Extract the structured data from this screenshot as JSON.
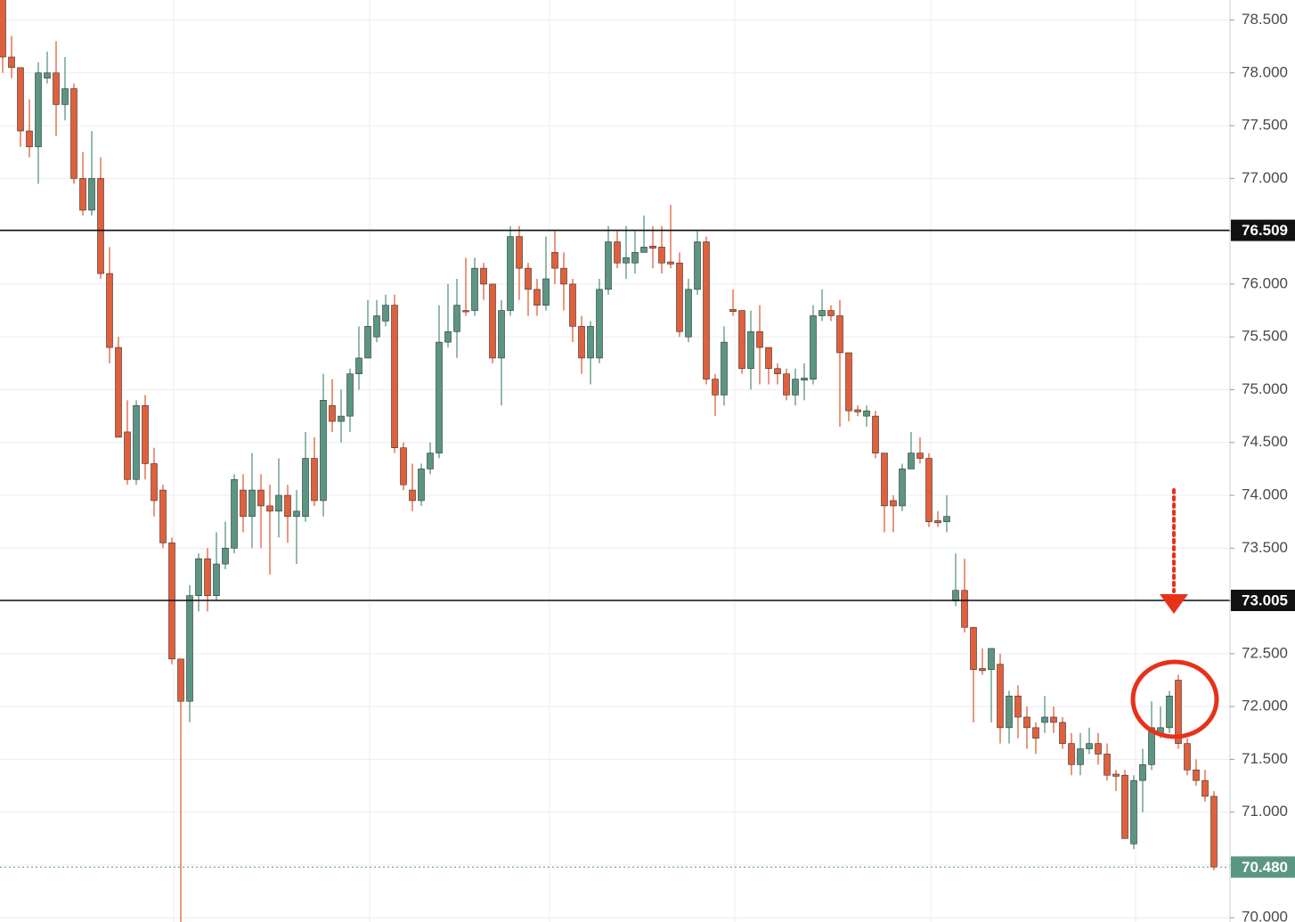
{
  "chart_data": {
    "type": "candlestick",
    "ohlc": [
      [
        78.7,
        78.7,
        78.0,
        78.15
      ],
      [
        78.15,
        78.35,
        77.95,
        78.05
      ],
      [
        78.05,
        78.05,
        77.3,
        77.45
      ],
      [
        77.45,
        77.75,
        77.2,
        77.3
      ],
      [
        77.3,
        78.1,
        76.95,
        78.0
      ],
      [
        77.95,
        78.2,
        77.9,
        78.0
      ],
      [
        78.0,
        78.3,
        77.4,
        77.7
      ],
      [
        77.7,
        78.15,
        77.55,
        77.85
      ],
      [
        77.85,
        77.9,
        76.95,
        77.0
      ],
      [
        77.0,
        77.25,
        76.65,
        76.7
      ],
      [
        76.7,
        77.45,
        76.65,
        77.0
      ],
      [
        77.0,
        77.2,
        76.05,
        76.1
      ],
      [
        76.1,
        76.35,
        75.25,
        75.4
      ],
      [
        75.4,
        75.5,
        74.55,
        74.55
      ],
      [
        74.6,
        74.9,
        74.1,
        74.15
      ],
      [
        74.15,
        74.9,
        74.1,
        74.85
      ],
      [
        74.85,
        74.95,
        74.15,
        74.3
      ],
      [
        74.3,
        74.45,
        73.8,
        73.95
      ],
      [
        74.05,
        74.1,
        73.5,
        73.55
      ],
      [
        73.55,
        73.6,
        72.4,
        72.45
      ],
      [
        72.45,
        72.45,
        69.95,
        72.05
      ],
      [
        72.05,
        73.15,
        71.85,
        73.05
      ],
      [
        73.05,
        73.45,
        72.9,
        73.4
      ],
      [
        73.4,
        73.5,
        72.9,
        73.05
      ],
      [
        73.05,
        73.65,
        73.0,
        73.35
      ],
      [
        73.35,
        73.75,
        73.3,
        73.5
      ],
      [
        73.5,
        74.2,
        73.45,
        74.15
      ],
      [
        74.05,
        74.2,
        73.65,
        73.8
      ],
      [
        73.8,
        74.4,
        73.5,
        74.05
      ],
      [
        74.05,
        74.2,
        73.5,
        73.9
      ],
      [
        73.9,
        74.1,
        73.25,
        73.85
      ],
      [
        73.85,
        74.35,
        73.6,
        74.0
      ],
      [
        74.0,
        74.1,
        73.55,
        73.8
      ],
      [
        73.8,
        74.05,
        73.35,
        73.85
      ],
      [
        73.8,
        74.6,
        73.75,
        74.35
      ],
      [
        74.35,
        74.55,
        73.9,
        73.95
      ],
      [
        73.95,
        75.15,
        73.8,
        74.9
      ],
      [
        74.85,
        75.1,
        74.6,
        74.7
      ],
      [
        74.7,
        75.0,
        74.5,
        74.75
      ],
      [
        74.75,
        75.2,
        74.6,
        75.15
      ],
      [
        75.15,
        75.6,
        75.0,
        75.3
      ],
      [
        75.3,
        75.85,
        75.3,
        75.6
      ],
      [
        75.5,
        75.85,
        75.45,
        75.7
      ],
      [
        75.65,
        75.9,
        75.6,
        75.8
      ],
      [
        75.8,
        75.9,
        74.4,
        74.45
      ],
      [
        74.45,
        74.5,
        74.05,
        74.1
      ],
      [
        74.05,
        74.3,
        73.85,
        73.95
      ],
      [
        73.95,
        74.3,
        73.9,
        74.25
      ],
      [
        74.25,
        74.5,
        74.2,
        74.4
      ],
      [
        74.4,
        75.8,
        74.35,
        75.45
      ],
      [
        75.45,
        76.0,
        75.4,
        75.55
      ],
      [
        75.55,
        76.05,
        75.3,
        75.8
      ],
      [
        75.75,
        76.25,
        75.7,
        75.74
      ],
      [
        75.75,
        76.25,
        75.7,
        76.15
      ],
      [
        76.15,
        76.2,
        75.85,
        76.0
      ],
      [
        76.0,
        76.0,
        75.25,
        75.3
      ],
      [
        75.3,
        75.85,
        74.85,
        75.75
      ],
      [
        75.75,
        76.55,
        75.7,
        76.45
      ],
      [
        76.45,
        76.55,
        75.85,
        76.15
      ],
      [
        76.15,
        76.2,
        75.7,
        75.95
      ],
      [
        75.95,
        76.05,
        75.7,
        75.8
      ],
      [
        75.8,
        76.45,
        75.75,
        76.05
      ],
      [
        76.3,
        76.5,
        76.0,
        76.15
      ],
      [
        76.15,
        76.3,
        75.75,
        76.0
      ],
      [
        76.0,
        76.05,
        75.45,
        75.6
      ],
      [
        75.6,
        75.7,
        75.15,
        75.3
      ],
      [
        75.3,
        75.65,
        75.05,
        75.6
      ],
      [
        75.3,
        76.05,
        75.25,
        75.95
      ],
      [
        75.95,
        76.55,
        75.9,
        76.4
      ],
      [
        76.4,
        76.5,
        76.15,
        76.2
      ],
      [
        76.2,
        76.55,
        76.05,
        76.25
      ],
      [
        76.2,
        76.5,
        76.1,
        76.3
      ],
      [
        76.3,
        76.65,
        76.3,
        76.35
      ],
      [
        76.36,
        76.55,
        76.15,
        76.34
      ],
      [
        76.35,
        76.55,
        76.1,
        76.2
      ],
      [
        76.21,
        76.75,
        76.15,
        76.19
      ],
      [
        76.2,
        76.3,
        75.5,
        75.55
      ],
      [
        75.5,
        76.05,
        75.45,
        75.95
      ],
      [
        75.95,
        76.5,
        75.9,
        76.4
      ],
      [
        76.4,
        76.45,
        75.05,
        75.1
      ],
      [
        75.1,
        75.15,
        74.75,
        74.95
      ],
      [
        74.95,
        75.6,
        74.85,
        75.45
      ],
      [
        75.76,
        75.95,
        75.7,
        75.74
      ],
      [
        75.75,
        75.75,
        75.15,
        75.2
      ],
      [
        75.2,
        75.75,
        75.0,
        75.55
      ],
      [
        75.55,
        75.8,
        75.05,
        75.4
      ],
      [
        75.4,
        75.4,
        75.05,
        75.2
      ],
      [
        75.2,
        75.25,
        75.05,
        75.15
      ],
      [
        75.15,
        75.2,
        74.9,
        74.95
      ],
      [
        74.95,
        75.2,
        74.85,
        75.1
      ],
      [
        75.09,
        75.25,
        74.9,
        75.11
      ],
      [
        75.1,
        75.8,
        75.05,
        75.7
      ],
      [
        75.7,
        75.95,
        75.65,
        75.75
      ],
      [
        75.75,
        75.8,
        75.65,
        75.7
      ],
      [
        75.7,
        75.85,
        74.65,
        75.35
      ],
      [
        75.35,
        75.35,
        74.7,
        74.8
      ],
      [
        74.81,
        74.85,
        74.75,
        74.79
      ],
      [
        74.75,
        74.85,
        74.65,
        74.8
      ],
      [
        74.75,
        74.8,
        74.35,
        74.4
      ],
      [
        74.4,
        74.4,
        73.65,
        73.9
      ],
      [
        73.95,
        74.0,
        73.65,
        73.9
      ],
      [
        73.9,
        74.3,
        73.85,
        74.25
      ],
      [
        74.25,
        74.6,
        74.25,
        74.4
      ],
      [
        74.4,
        74.55,
        74.3,
        74.35
      ],
      [
        74.35,
        74.4,
        73.7,
        73.75
      ],
      [
        73.76,
        73.85,
        73.7,
        73.74
      ],
      [
        73.75,
        74.0,
        73.65,
        73.8
      ],
      [
        73.0,
        73.45,
        72.95,
        73.1
      ],
      [
        73.1,
        73.4,
        72.7,
        72.75
      ],
      [
        72.75,
        72.75,
        71.85,
        72.35
      ],
      [
        72.36,
        72.55,
        72.3,
        72.34
      ],
      [
        72.35,
        72.55,
        71.85,
        72.55
      ],
      [
        72.4,
        72.5,
        71.65,
        71.8
      ],
      [
        71.8,
        72.15,
        71.65,
        72.1
      ],
      [
        72.1,
        72.2,
        71.7,
        71.9
      ],
      [
        71.9,
        72.0,
        71.6,
        71.8
      ],
      [
        71.8,
        71.85,
        71.55,
        71.7
      ],
      [
        71.85,
        72.1,
        71.75,
        71.9
      ],
      [
        71.9,
        72.0,
        71.75,
        71.85
      ],
      [
        71.85,
        71.9,
        71.6,
        71.65
      ],
      [
        71.65,
        71.75,
        71.35,
        71.45
      ],
      [
        71.45,
        71.75,
        71.35,
        71.6
      ],
      [
        71.6,
        71.8,
        71.55,
        71.65
      ],
      [
        71.65,
        71.75,
        71.45,
        71.55
      ],
      [
        71.55,
        71.65,
        71.3,
        71.35
      ],
      [
        71.36,
        71.4,
        71.2,
        71.34
      ],
      [
        71.35,
        71.4,
        70.75,
        70.75
      ],
      [
        70.7,
        71.35,
        70.65,
        71.3
      ],
      [
        71.3,
        71.6,
        71.0,
        71.45
      ],
      [
        71.45,
        72.05,
        71.4,
        71.8
      ],
      [
        71.75,
        72.0,
        71.7,
        71.8
      ],
      [
        71.8,
        72.15,
        71.75,
        72.1
      ],
      [
        72.25,
        72.3,
        71.6,
        71.65
      ],
      [
        71.65,
        71.7,
        71.35,
        71.4
      ],
      [
        71.4,
        71.5,
        71.25,
        71.3
      ],
      [
        71.3,
        71.4,
        71.1,
        71.15
      ],
      [
        71.15,
        71.2,
        70.45,
        70.48
      ]
    ],
    "up_color": "#5a9683",
    "down_color": "#e0603c",
    "ylim": [
      69.96,
      78.69
    ],
    "yticks": [
      {
        "value": 70.0,
        "label": "70.000"
      },
      {
        "value": 70.5,
        "label": "70.500"
      },
      {
        "value": 71.0,
        "label": "71.000"
      },
      {
        "value": 71.5,
        "label": "71.500"
      },
      {
        "value": 72.0,
        "label": "72.000"
      },
      {
        "value": 72.5,
        "label": "72.500"
      },
      {
        "value": 73.0,
        "label": "73.000"
      },
      {
        "value": 73.5,
        "label": "73.500"
      },
      {
        "value": 74.0,
        "label": "74.000"
      },
      {
        "value": 74.5,
        "label": "74.500"
      },
      {
        "value": 75.0,
        "label": "75.000"
      },
      {
        "value": 75.5,
        "label": "75.500"
      },
      {
        "value": 76.0,
        "label": "76.000"
      },
      {
        "value": 76.5,
        "label": "76.500"
      },
      {
        "value": 77.0,
        "label": "77.000"
      },
      {
        "value": 77.5,
        "label": "77.500"
      },
      {
        "value": 78.0,
        "label": "78.000"
      },
      {
        "value": 78.5,
        "label": "78.500"
      }
    ],
    "grid": true,
    "levels": [
      {
        "value": 76.509,
        "label": "76.509"
      },
      {
        "value": 73.005,
        "label": "73.005"
      }
    ],
    "last_price": {
      "value": 70.48,
      "label": "70.480"
    }
  }
}
